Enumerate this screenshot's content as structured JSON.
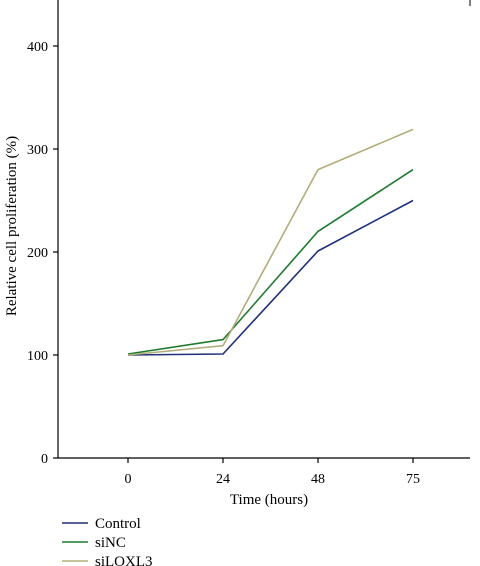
{
  "chart_data": {
    "type": "line",
    "x": [
      0,
      24,
      48,
      75
    ],
    "x_ticks": [
      "0",
      "24",
      "48",
      "75"
    ],
    "y_ticks": [
      "0",
      "100",
      "200",
      "300",
      "400"
    ],
    "ylim": [
      0,
      400
    ],
    "xlabel": "Time (hours)",
    "ylabel": "Relative cell proliferation (%)",
    "grid": false,
    "legend_position": "bottom-left, below plot",
    "series": [
      {
        "name": "Control",
        "color": "#1f2f7a",
        "values": [
          100,
          101,
          201,
          250
        ]
      },
      {
        "name": "siNC",
        "color": "#1e7a2e",
        "values": [
          101,
          115,
          220,
          280
        ]
      },
      {
        "name": "siLOXL3",
        "color": "#b3ad7c",
        "values": [
          100,
          109,
          280,
          319
        ]
      }
    ]
  }
}
